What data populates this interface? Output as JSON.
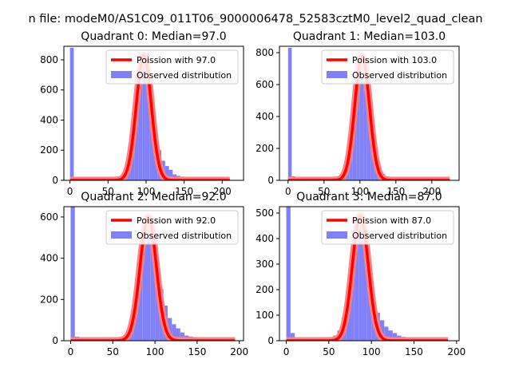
{
  "figure": {
    "suptitle": "n file: modeM0/AS1C09_011T06_9000006478_52583cztM0_level2_quad_clean"
  },
  "colors": {
    "hist": "#8080f8",
    "poisson": "#ff0000",
    "poisson_band": "#ff8080",
    "axis": "#000000"
  },
  "chart_data": [
    {
      "type": "bar",
      "title": "Quadrant 0: Median=97.0",
      "median": 97,
      "xlim": [
        -8,
        228
      ],
      "ylim": [
        0,
        890
      ],
      "xticks": [
        0,
        50,
        100,
        150,
        200
      ],
      "yticks": [
        0,
        200,
        400,
        600,
        800
      ],
      "grid": false,
      "legend": {
        "placement": "upper right",
        "entries": [
          "Poission with 97.0",
          "Observed distribution"
        ]
      },
      "bin_width": 5,
      "bins": [
        [
          0,
          880
        ],
        [
          5,
          10
        ],
        [
          10,
          8
        ],
        [
          15,
          4
        ],
        [
          20,
          3
        ],
        [
          25,
          2
        ],
        [
          30,
          2
        ],
        [
          35,
          2
        ],
        [
          40,
          1
        ],
        [
          45,
          1
        ],
        [
          50,
          1
        ],
        [
          55,
          2
        ],
        [
          60,
          3
        ],
        [
          65,
          12
        ],
        [
          70,
          25
        ],
        [
          75,
          70
        ],
        [
          80,
          200
        ],
        [
          85,
          450
        ],
        [
          90,
          700
        ],
        [
          95,
          820
        ],
        [
          100,
          640
        ],
        [
          105,
          390
        ],
        [
          110,
          280
        ],
        [
          115,
          200
        ],
        [
          120,
          130
        ],
        [
          125,
          95
        ],
        [
          130,
          70
        ],
        [
          135,
          40
        ],
        [
          140,
          30
        ],
        [
          145,
          25
        ],
        [
          150,
          22
        ],
        [
          155,
          20
        ],
        [
          160,
          15
        ],
        [
          165,
          10
        ],
        [
          170,
          6
        ],
        [
          175,
          4
        ],
        [
          180,
          2
        ],
        [
          185,
          2
        ],
        [
          190,
          1
        ],
        [
          195,
          1
        ],
        [
          200,
          1
        ],
        [
          205,
          1
        ],
        [
          210,
          1
        ]
      ],
      "poisson_peak": 830,
      "poisson_range": [
        0,
        210
      ]
    },
    {
      "type": "bar",
      "title": "Quadrant 1: Median=103.0",
      "median": 103,
      "xlim": [
        -12,
        238
      ],
      "ylim": [
        0,
        840
      ],
      "xticks": [
        0,
        50,
        100,
        150,
        200
      ],
      "yticks": [
        0,
        200,
        400,
        600,
        800
      ],
      "grid": false,
      "legend": {
        "placement": "upper right",
        "entries": [
          "Poission with 103.0",
          "Observed distribution"
        ]
      },
      "bin_width": 5,
      "bins": [
        [
          0,
          830
        ],
        [
          5,
          25
        ],
        [
          10,
          10
        ],
        [
          15,
          5
        ],
        [
          20,
          3
        ],
        [
          25,
          2
        ],
        [
          30,
          2
        ],
        [
          35,
          1
        ],
        [
          40,
          1
        ],
        [
          45,
          1
        ],
        [
          50,
          1
        ],
        [
          55,
          1
        ],
        [
          60,
          2
        ],
        [
          65,
          4
        ],
        [
          70,
          8
        ],
        [
          75,
          25
        ],
        [
          80,
          80
        ],
        [
          85,
          210
        ],
        [
          90,
          440
        ],
        [
          95,
          660
        ],
        [
          100,
          790
        ],
        [
          105,
          620
        ],
        [
          110,
          400
        ],
        [
          115,
          230
        ],
        [
          120,
          120
        ],
        [
          125,
          70
        ],
        [
          130,
          40
        ],
        [
          135,
          25
        ],
        [
          140,
          18
        ],
        [
          145,
          12
        ],
        [
          150,
          8
        ],
        [
          155,
          6
        ],
        [
          160,
          4
        ],
        [
          165,
          3
        ],
        [
          170,
          2
        ],
        [
          175,
          2
        ],
        [
          180,
          1
        ],
        [
          185,
          1
        ],
        [
          190,
          1
        ],
        [
          195,
          1
        ],
        [
          200,
          1
        ],
        [
          205,
          1
        ],
        [
          210,
          1
        ],
        [
          215,
          1
        ],
        [
          220,
          1
        ]
      ],
      "poisson_peak": 780,
      "poisson_range": [
        0,
        225
      ]
    },
    {
      "type": "bar",
      "title": "Quadrant 2: Median=92.0",
      "median": 92,
      "xlim": [
        -8,
        205
      ],
      "ylim": [
        0,
        650
      ],
      "xticks": [
        0,
        50,
        100,
        150,
        200
      ],
      "yticks": [
        0,
        200,
        400,
        600
      ],
      "grid": false,
      "legend": {
        "placement": "upper right",
        "entries": [
          "Poission with 92.0",
          "Observed distribution"
        ]
      },
      "bin_width": 5,
      "bins": [
        [
          0,
          650
        ],
        [
          5,
          20
        ],
        [
          10,
          8
        ],
        [
          15,
          4
        ],
        [
          20,
          3
        ],
        [
          25,
          2
        ],
        [
          30,
          2
        ],
        [
          35,
          2
        ],
        [
          40,
          2
        ],
        [
          45,
          3
        ],
        [
          50,
          4
        ],
        [
          55,
          8
        ],
        [
          60,
          15
        ],
        [
          65,
          30
        ],
        [
          70,
          80
        ],
        [
          75,
          160
        ],
        [
          80,
          340
        ],
        [
          85,
          470
        ],
        [
          90,
          560
        ],
        [
          95,
          500
        ],
        [
          100,
          390
        ],
        [
          105,
          250
        ],
        [
          110,
          170
        ],
        [
          115,
          110
        ],
        [
          120,
          80
        ],
        [
          125,
          60
        ],
        [
          130,
          40
        ],
        [
          135,
          25
        ],
        [
          140,
          20
        ],
        [
          145,
          15
        ],
        [
          150,
          12
        ],
        [
          155,
          8
        ],
        [
          160,
          5
        ],
        [
          165,
          3
        ],
        [
          170,
          2
        ],
        [
          175,
          2
        ],
        [
          180,
          1
        ],
        [
          185,
          1
        ],
        [
          190,
          1
        ],
        [
          195,
          1
        ]
      ],
      "poisson_peak": 600,
      "poisson_range": [
        0,
        195
      ]
    },
    {
      "type": "bar",
      "title": "Quadrant 3: Median=87.0",
      "median": 87,
      "xlim": [
        -8,
        203
      ],
      "ylim": [
        0,
        525
      ],
      "xticks": [
        0,
        50,
        100,
        150,
        200
      ],
      "yticks": [
        0,
        100,
        200,
        300,
        400,
        500
      ],
      "grid": false,
      "legend": {
        "placement": "upper right",
        "entries": [
          "Poission with 87.0",
          "Observed distribution"
        ]
      },
      "bin_width": 5,
      "bins": [
        [
          0,
          525
        ],
        [
          5,
          30
        ],
        [
          10,
          10
        ],
        [
          15,
          4
        ],
        [
          20,
          3
        ],
        [
          25,
          2
        ],
        [
          30,
          2
        ],
        [
          35,
          3
        ],
        [
          40,
          4
        ],
        [
          45,
          6
        ],
        [
          50,
          10
        ],
        [
          55,
          20
        ],
        [
          60,
          40
        ],
        [
          65,
          90
        ],
        [
          70,
          180
        ],
        [
          75,
          330
        ],
        [
          80,
          470
        ],
        [
          85,
          490
        ],
        [
          90,
          410
        ],
        [
          95,
          260
        ],
        [
          100,
          170
        ],
        [
          105,
          110
        ],
        [
          110,
          80
        ],
        [
          115,
          55
        ],
        [
          120,
          40
        ],
        [
          125,
          30
        ],
        [
          130,
          20
        ],
        [
          135,
          15
        ],
        [
          140,
          12
        ],
        [
          145,
          10
        ],
        [
          150,
          8
        ],
        [
          155,
          6
        ],
        [
          160,
          5
        ],
        [
          165,
          3
        ],
        [
          170,
          2
        ],
        [
          175,
          2
        ],
        [
          180,
          1
        ],
        [
          185,
          1
        ],
        [
          190,
          1
        ]
      ],
      "poisson_peak": 490,
      "poisson_range": [
        0,
        190
      ]
    }
  ]
}
